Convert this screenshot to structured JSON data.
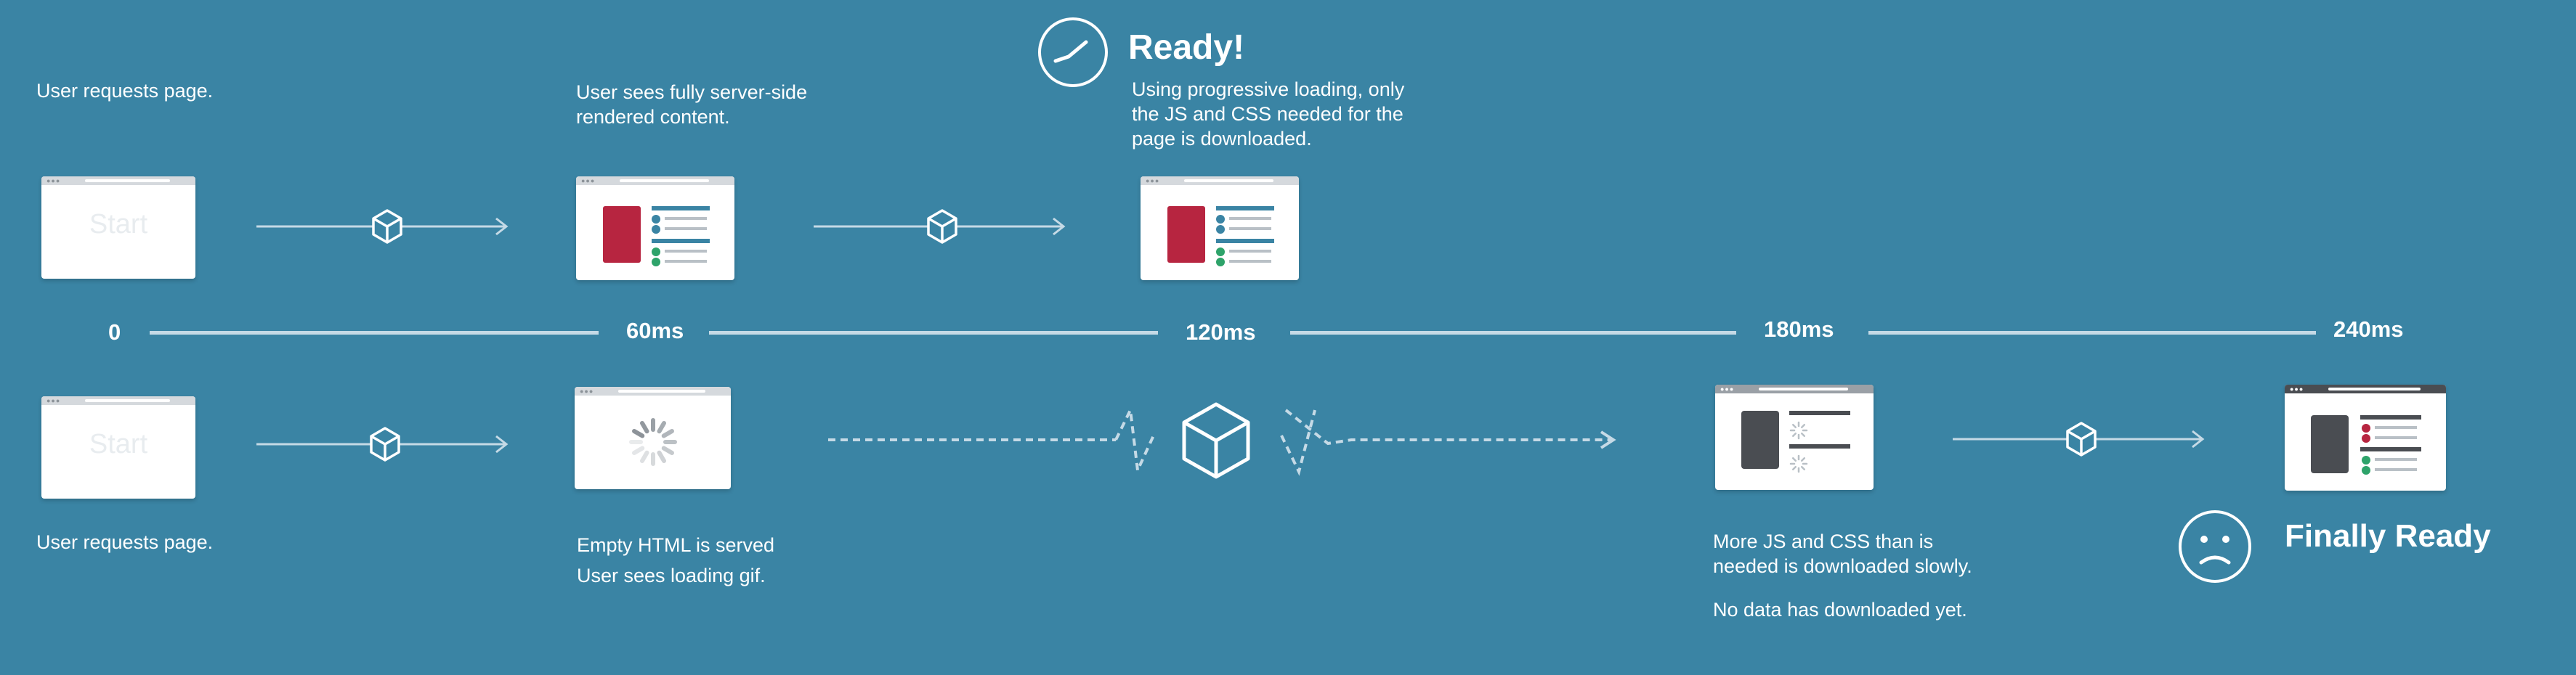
{
  "top_row": {
    "step1_caption": "User requests page.",
    "step2_caption_line1": "User sees fully server-side",
    "step2_caption_line2": "rendered content.",
    "ready_title": "Ready!",
    "ready_caption_line1": "Using progressive loading, only",
    "ready_caption_line2": "the JS and CSS needed for the",
    "ready_caption_line3": "page is downloaded.",
    "start_label": "Start"
  },
  "timeline": {
    "ticks": [
      "0",
      "60ms",
      "120ms",
      "180ms",
      "240ms"
    ]
  },
  "bottom_row": {
    "start_label": "Start",
    "step1_caption": "User requests page.",
    "step2_caption_line1": "Empty HTML is served",
    "step2_caption_line2": "User sees loading gif.",
    "step3_caption_line1": "More JS and CSS than is",
    "step3_caption_line2": "needed  is downloaded slowly.",
    "step3_caption_line3": "No data has downloaded yet.",
    "final_title": "Finally Ready"
  },
  "icons": {
    "ready": "check-circle-icon",
    "sad": "sad-face-icon",
    "package": "cube-icon",
    "spinner": "loading-spinner-icon"
  },
  "colors": {
    "background": "#3a84a4",
    "line": "#c5dae6",
    "content_red": "#b72540",
    "content_dark": "#4a4d52",
    "accent_blue": "#3a84a4",
    "accent_green": "#2ea36a",
    "accent_red": "#b72540"
  }
}
